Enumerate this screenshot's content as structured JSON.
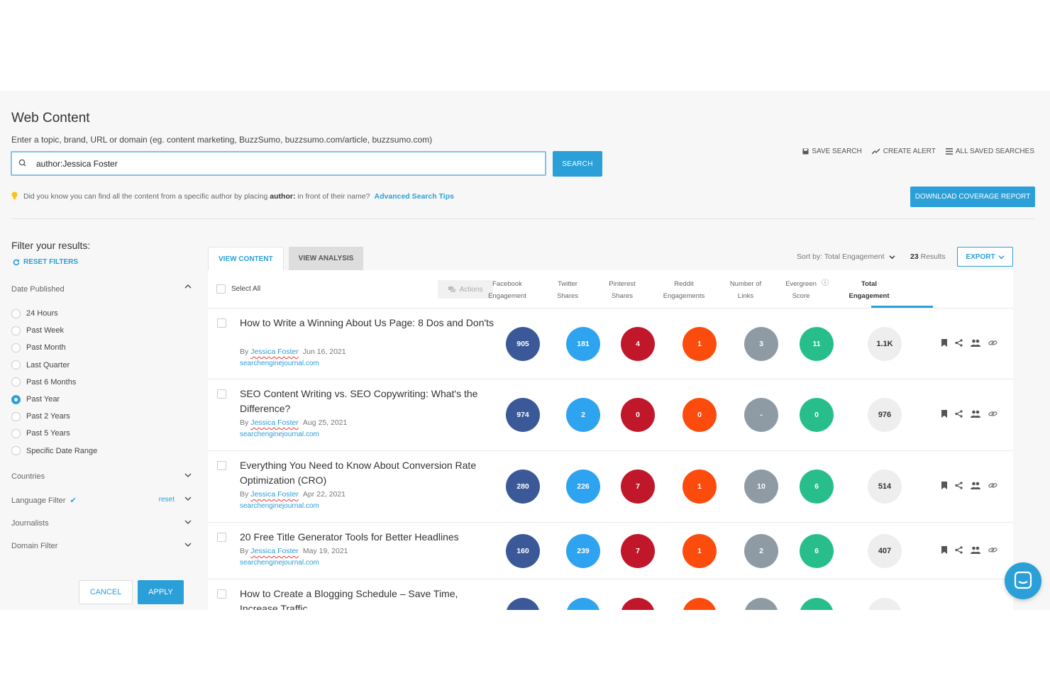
{
  "header": {
    "title": "Web Content",
    "subtitle": "Enter a topic, brand, URL or domain (eg. content marketing, BuzzSumo, buzzsumo.com/article, buzzsumo.com)",
    "search_value": "author:Jessica Foster",
    "search_button": "SEARCH",
    "save_search": "SAVE SEARCH",
    "create_alert": "CREATE ALERT",
    "all_saved_searches": "ALL SAVED SEARCHES",
    "tip_prefix": "Did you know you can find all the content from a specific author by placing",
    "tip_keyword": "author:",
    "tip_suffix": "in front of their name?",
    "tip_link": "Advanced Search Tips",
    "download_button": "DOWNLOAD COVERAGE REPORT"
  },
  "sidebar": {
    "title": "Filter your results:",
    "reset_filters": "RESET FILTERS",
    "date_published": "Date Published",
    "date_options": [
      {
        "label": "24 Hours",
        "selected": false
      },
      {
        "label": "Past Week",
        "selected": false
      },
      {
        "label": "Past Month",
        "selected": false
      },
      {
        "label": "Last Quarter",
        "selected": false
      },
      {
        "label": "Past 6 Months",
        "selected": false
      },
      {
        "label": "Past Year",
        "selected": true
      },
      {
        "label": "Past 2 Years",
        "selected": false
      },
      {
        "label": "Past 5 Years",
        "selected": false
      },
      {
        "label": "Specific Date Range",
        "selected": false
      }
    ],
    "countries": "Countries",
    "language_filter": "Language Filter",
    "language_reset": "reset",
    "journalists": "Journalists",
    "domain_filter": "Domain Filter",
    "cancel": "CANCEL",
    "apply": "APPLY"
  },
  "main": {
    "tab_view_content": "VIEW CONTENT",
    "tab_view_analysis": "VIEW ANALYSIS",
    "sort_label": "Sort by: Total Engagement",
    "results_count": "23",
    "results_label": "Results",
    "export": "EXPORT",
    "select_all": "Select All",
    "actions": "Actions",
    "columns": [
      {
        "line1": "Facebook",
        "line2": "Engagement"
      },
      {
        "line1": "Twitter",
        "line2": "Shares"
      },
      {
        "line1": "Pinterest",
        "line2": "Shares"
      },
      {
        "line1": "Reddit",
        "line2": "Engagements"
      },
      {
        "line1": "Number of",
        "line2": "Links"
      },
      {
        "line1": "Evergreen",
        "line2": "Score"
      },
      {
        "line1": "Total",
        "line2": "Engagement"
      }
    ],
    "by_label": "By",
    "colors": {
      "facebook": "#3b5998",
      "twitter": "#2ea3ef",
      "pinterest": "#c0172a",
      "reddit": "#fc4c0d",
      "links": "#8e9ba4",
      "evergreen": "#27be8c",
      "accent": "#2b9fd8"
    },
    "rows": [
      {
        "title": "How to Write a Winning About Us Page: 8 Dos and Don'ts",
        "author": "Jessica Foster",
        "date": "Jun 16, 2021",
        "domain": "searchenginejournal.com",
        "facebook": "905",
        "twitter": "181",
        "pinterest": "4",
        "reddit": "1",
        "links": "3",
        "evergreen": "11",
        "total": "1.1K"
      },
      {
        "title": "SEO Content Writing vs. SEO Copywriting: What's the Difference?",
        "author": "Jessica Foster",
        "date": "Aug 25, 2021",
        "domain": "searchenginejournal.com",
        "facebook": "974",
        "twitter": "2",
        "pinterest": "0",
        "reddit": "0",
        "links": "-",
        "evergreen": "0",
        "total": "976"
      },
      {
        "title": "Everything You Need to Know About Conversion Rate Optimization (CRO)",
        "author": "Jessica Foster",
        "date": "Apr 22, 2021",
        "domain": "searchenginejournal.com",
        "facebook": "280",
        "twitter": "226",
        "pinterest": "7",
        "reddit": "1",
        "links": "10",
        "evergreen": "6",
        "total": "514"
      },
      {
        "title": "20 Free Title Generator Tools for Better Headlines",
        "author": "Jessica Foster",
        "date": "May 19, 2021",
        "domain": "searchenginejournal.com",
        "facebook": "160",
        "twitter": "239",
        "pinterest": "7",
        "reddit": "1",
        "links": "2",
        "evergreen": "6",
        "total": "407"
      },
      {
        "title": "How to Create a Blogging Schedule – Save Time, Increase Traffic",
        "author": "",
        "date": "",
        "domain": "",
        "facebook": "",
        "twitter": "",
        "pinterest": "",
        "reddit": "",
        "links": "",
        "evergreen": "",
        "total": ""
      }
    ]
  }
}
